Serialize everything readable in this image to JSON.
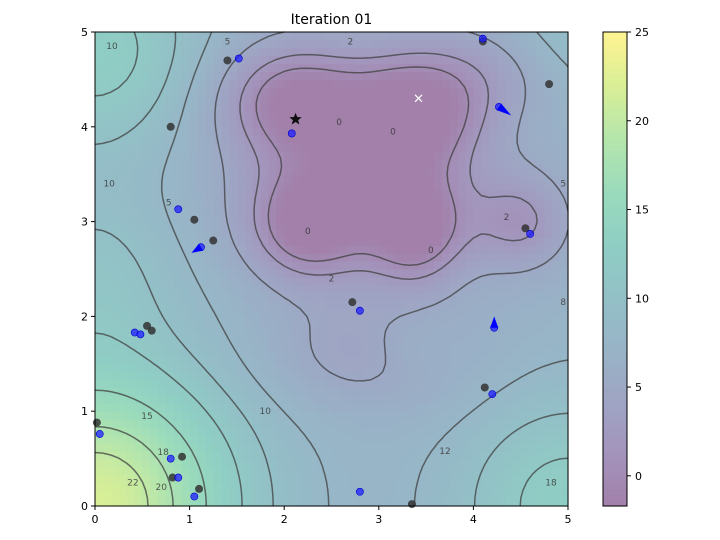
{
  "chart_data": {
    "type": "contour",
    "title": "Iteration 01",
    "xlabel": "",
    "ylabel": "",
    "xlim": [
      0,
      5
    ],
    "ylim": [
      0,
      5
    ],
    "x_ticks": [
      "0",
      "1",
      "2",
      "3",
      "4",
      "5"
    ],
    "y_ticks": [
      "0",
      "1",
      "2",
      "3",
      "4",
      "5"
    ],
    "colorbar": {
      "range": [
        -1.7,
        25
      ],
      "ticks": [
        "0",
        "5",
        "10",
        "15",
        "20",
        "25"
      ],
      "colormap": "viridis",
      "alpha": 0.5
    },
    "contour_labels": [
      {
        "text": "2",
        "x": 2.7,
        "y": 4.9
      },
      {
        "text": "0",
        "x": 2.58,
        "y": 4.05
      },
      {
        "text": "0",
        "x": 3.15,
        "y": 3.95
      },
      {
        "text": "0",
        "x": 2.25,
        "y": 2.9
      },
      {
        "text": "0",
        "x": 3.55,
        "y": 2.7
      },
      {
        "text": "2",
        "x": 2.5,
        "y": 2.4
      },
      {
        "text": "2",
        "x": 4.35,
        "y": 3.05
      },
      {
        "text": "5",
        "x": 0.78,
        "y": 3.2
      },
      {
        "text": "5",
        "x": 1.4,
        "y": 4.9
      },
      {
        "text": "5",
        "x": 4.95,
        "y": 3.4
      },
      {
        "text": "8",
        "x": 4.95,
        "y": 2.15
      },
      {
        "text": "10",
        "x": 0.18,
        "y": 4.85
      },
      {
        "text": "10",
        "x": 0.15,
        "y": 3.4
      },
      {
        "text": "10",
        "x": 1.8,
        "y": 1.0
      },
      {
        "text": "12",
        "x": 3.7,
        "y": 0.58
      },
      {
        "text": "15",
        "x": 0.55,
        "y": 0.95
      },
      {
        "text": "18",
        "x": 0.72,
        "y": 0.57
      },
      {
        "text": "18",
        "x": 4.82,
        "y": 0.25
      },
      {
        "text": "20",
        "x": 0.7,
        "y": 0.2
      },
      {
        "text": "22",
        "x": 0.4,
        "y": 0.25
      }
    ],
    "series": [
      {
        "marker": "circle-black",
        "points": [
          [
            1.4,
            4.7
          ],
          [
            4.1,
            4.9
          ],
          [
            4.8,
            4.45
          ],
          [
            0.8,
            4.0
          ],
          [
            1.05,
            3.02
          ],
          [
            1.25,
            2.8
          ],
          [
            4.55,
            2.93
          ],
          [
            2.72,
            2.15
          ],
          [
            0.55,
            1.9
          ],
          [
            0.6,
            1.85
          ],
          [
            4.12,
            1.25
          ],
          [
            0.02,
            0.88
          ],
          [
            0.92,
            0.52
          ],
          [
            0.82,
            0.3
          ],
          [
            1.1,
            0.18
          ],
          [
            3.35,
            0.02
          ]
        ]
      },
      {
        "marker": "circle-blue",
        "points": [
          [
            1.52,
            4.72
          ],
          [
            4.1,
            4.93
          ],
          [
            2.08,
            3.93
          ],
          [
            0.88,
            3.13
          ],
          [
            4.6,
            2.87
          ],
          [
            2.8,
            2.06
          ],
          [
            0.42,
            1.83
          ],
          [
            0.48,
            1.81
          ],
          [
            4.2,
            1.18
          ],
          [
            0.05,
            0.76
          ],
          [
            0.8,
            0.5
          ],
          [
            0.88,
            0.3
          ],
          [
            1.05,
            0.1
          ],
          [
            2.8,
            0.15
          ],
          [
            4.22,
            1.88
          ],
          [
            4.27,
            4.21
          ],
          [
            1.12,
            2.73
          ]
        ]
      },
      {
        "marker": "arrow",
        "arrows": [
          [
            4.27,
            4.21,
            4.4,
            4.12
          ],
          [
            1.12,
            2.73,
            1.02,
            2.67
          ],
          [
            4.22,
            1.88,
            4.22,
            2.0
          ]
        ]
      },
      {
        "marker": "star",
        "points": [
          [
            2.12,
            4.08
          ]
        ]
      },
      {
        "marker": "x-white",
        "points": [
          [
            3.42,
            4.3
          ]
        ]
      }
    ]
  }
}
